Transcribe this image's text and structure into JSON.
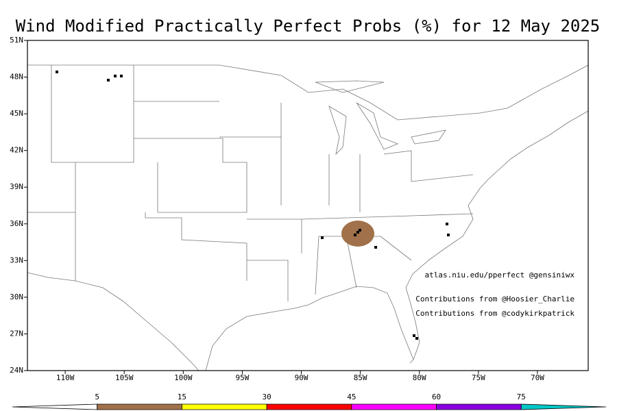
{
  "map": {
    "title": "Wind Modified Practically Perfect Probs (%) for 12 May 2025",
    "latlim": [
      24,
      51
    ],
    "lonlim": [
      -113.2,
      -65.7
    ],
    "latticks": [
      {
        "value": 24,
        "label": "24N"
      },
      {
        "value": 27,
        "label": "27N"
      },
      {
        "value": 30,
        "label": "30N"
      },
      {
        "value": 33,
        "label": "33N"
      },
      {
        "value": 36,
        "label": "36N"
      },
      {
        "value": 39,
        "label": "39N"
      },
      {
        "value": 42,
        "label": "42N"
      },
      {
        "value": 45,
        "label": "45N"
      },
      {
        "value": 48,
        "label": "48N"
      },
      {
        "value": 51,
        "label": "51N"
      }
    ],
    "lonticks": [
      {
        "value": -110,
        "label": "110W"
      },
      {
        "value": -105,
        "label": "105W"
      },
      {
        "value": -100,
        "label": "100W"
      },
      {
        "value": -95,
        "label": "95W"
      },
      {
        "value": -90,
        "label": "90W"
      },
      {
        "value": -85,
        "label": "85W"
      },
      {
        "value": -80,
        "label": "80W"
      },
      {
        "value": -75,
        "label": "75W"
      },
      {
        "value": -70,
        "label": "70W"
      }
    ],
    "credits": [
      "atlas.niu.edu/pperfect @gensiniwx",
      "Contributions from @Hoosier_Charlie",
      "Contributions from @codykirkpatrick"
    ],
    "colorbar": {
      "levels": [
        5,
        15,
        30,
        45,
        60,
        75
      ],
      "colors": [
        "#ffffff",
        "#a0714a",
        "#ffff00",
        "#ff0000",
        "#ff00ff",
        "#8b00e0",
        "#00c8c8"
      ]
    }
  }
}
